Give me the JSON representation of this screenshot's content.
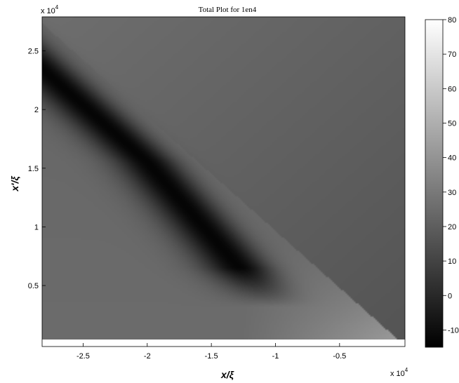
{
  "chart_data": {
    "type": "heatmap",
    "title": "Total Plot for 1en4",
    "xlabel": "x/ξ",
    "ylabel": "x'/ξ",
    "x_exponent_label": "x 10",
    "x_exponent_power": "4",
    "y_exponent_label": "x 10",
    "y_exponent_power": "4",
    "xlim": [
      -2.82,
      0.01
    ],
    "ylim": [
      0.04,
      2.79
    ],
    "x_ticks": [
      -2.5,
      -2,
      -1.5,
      -1,
      -0.5
    ],
    "x_tick_labels": [
      "-2.5",
      "-2",
      "-1.5",
      "-1",
      "-0.5"
    ],
    "y_ticks": [
      0.5,
      1,
      1.5,
      2,
      2.5
    ],
    "y_tick_labels": [
      "0.5",
      "1",
      "1.5",
      "2",
      "2.5"
    ],
    "colormap": "gray",
    "colorbar": {
      "range": [
        -15,
        80
      ],
      "ticks": [
        -10,
        0,
        10,
        20,
        30,
        40,
        50,
        60,
        70,
        80
      ],
      "tick_labels": [
        "-10",
        "0",
        "10",
        "20",
        "30",
        "40",
        "50",
        "60",
        "70",
        "80"
      ]
    },
    "grid": false,
    "colors": {
      "background": "#ffffff",
      "axis": "#000000",
      "colorbar_low": "#000000",
      "colorbar_high": "#ffffff"
    }
  }
}
